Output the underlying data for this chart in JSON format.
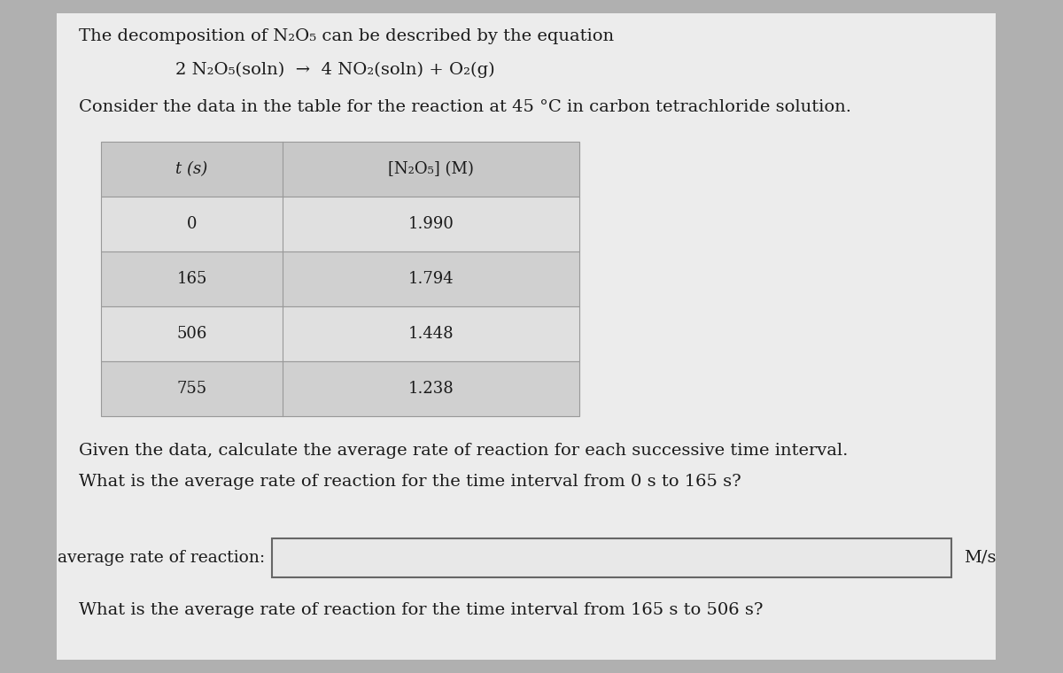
{
  "bg_color": "#b0b0b0",
  "panel_color": "#e8e8e8",
  "title_text": "The decomposition of N₂O₅ can be described by the equation",
  "equation": "2 N₂O₅(soln)  →  4 NO₂(soln) + O₂(g)",
  "consider_text": "Consider the data in the table for the reaction at 45 °C in carbon tetrachloride solution.",
  "table_header_col1": "t (s)",
  "table_header_col2": "[N₂O₅] (M)",
  "table_times": [
    0,
    165,
    506,
    755
  ],
  "table_concs": [
    1.99,
    1.794,
    1.448,
    1.238
  ],
  "table_header_color": "#c8c8c8",
  "table_row_colors": [
    "#e0e0e0",
    "#d0d0d0",
    "#e0e0e0",
    "#d0d0d0"
  ],
  "table_border_color": "#999999",
  "given_text": "Given the data, calculate the average rate of reaction for each successive time interval.",
  "question1": "What is the average rate of reaction for the time interval from 0 s to 165 s?",
  "label_avg_rate": "average rate of reaction:",
  "unit_label": "M/s",
  "question2": "What is the average rate of reaction for the time interval from 165 s to 506 s?",
  "text_color": "#1a1a1a",
  "input_box_fill": "#e8e8e8",
  "input_box_border": "#666666",
  "font_size_body": 14,
  "font_size_table": 13,
  "font_size_eq": 14
}
